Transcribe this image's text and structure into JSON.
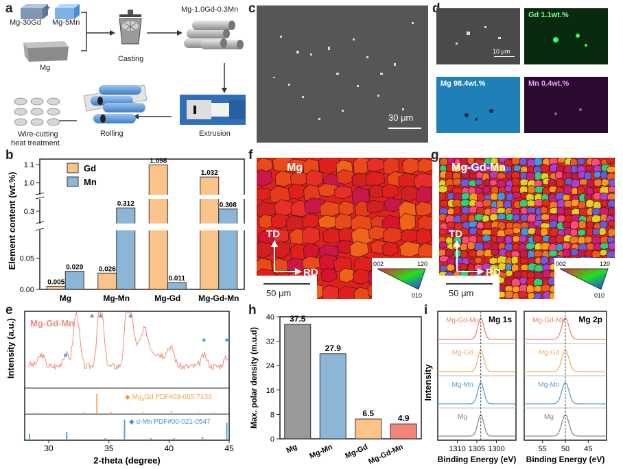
{
  "panels": {
    "a": {
      "letter": "a",
      "mg30gd": "Mg-30Gd",
      "plus": "+",
      "mg5mn": "Mg-5Mn",
      "mg": "Mg",
      "casting": "Casting",
      "alloy": "Mg-1.0Gd-0.3Mn",
      "extrusion": "Extrusion",
      "rolling": "Rolling",
      "wire_cutting": "Wire-cutting",
      "heat_treatment": "heat treatment"
    },
    "c": {
      "letter": "c",
      "scale": "30 μm"
    },
    "d": {
      "letter": "d",
      "scale": "10 μm",
      "gd": "Gd 1.1wt.%",
      "mg": "Mg 98.4wt.%",
      "mn": "Mn 0.4wt.%"
    },
    "f": {
      "letter": "f",
      "label": "Mg",
      "td": "TD",
      "rd": "RD",
      "scale": "50 μm",
      "ipf_002": "002",
      "ipf_120": "120",
      "ipf_010": "010"
    },
    "g": {
      "letter": "g",
      "label": "Mg-Gd-Mn",
      "td": "TD",
      "rd": "RD",
      "scale": "50 μm",
      "ipf_002": "002",
      "ipf_120": "120",
      "ipf_010": "010"
    }
  },
  "chart_data": [
    {
      "id": "b",
      "letter": "b",
      "type": "bar",
      "ylabel": "Element content (wt.%)",
      "categories": [
        "Mg",
        "Mg-Mn",
        "Mg-Gd",
        "Mg-Gd-Mn"
      ],
      "series": [
        {
          "name": "Gd",
          "color": "#f9c38a",
          "values": [
            0.005,
            0.026,
            1.098,
            1.032
          ],
          "labels": [
            "0.005",
            "0.026",
            "1.098",
            "1.032"
          ]
        },
        {
          "name": "Mn",
          "color": "#8db6d6",
          "values": [
            0.029,
            0.312,
            0.011,
            0.308
          ],
          "labels": [
            "0.029",
            "0.312",
            "0.011",
            "0.308"
          ]
        }
      ],
      "yticks": [
        "0.00",
        "0.05",
        "0.3",
        "1.0",
        "1.1"
      ],
      "y_segments": [
        [
          0,
          0.09
        ],
        [
          0.26,
          0.34
        ],
        [
          0.95,
          1.13
        ]
      ]
    },
    {
      "id": "e",
      "letter": "e",
      "type": "line",
      "xlabel": "2-theta (degree)",
      "ylabel": "Intensity (a.u.)",
      "xlim": [
        28,
        45
      ],
      "xticks": [
        "30",
        "35",
        "40",
        "45"
      ],
      "sample": "Mg-Gd-Mn",
      "ref1": "Mg3Gd PDF#03-065-7133",
      "ref1_main": "Mg",
      "ref1_sub": "3",
      "ref1_rest": "Gd PDF#03-065-7133",
      "ref2": "α-Mn PDF#00-021-0547",
      "ref1_sticks": [
        [
          28.8,
          0.08
        ],
        [
          30.6,
          0.05
        ],
        [
          32.9,
          0.1
        ],
        [
          34.0,
          1.0
        ],
        [
          35.2,
          0.1
        ],
        [
          37.8,
          0.1
        ],
        [
          40.2,
          0.15
        ],
        [
          42.5,
          0.08
        ],
        [
          43.8,
          0.08
        ]
      ],
      "ref2_sticks": [
        [
          28.4,
          0.3
        ],
        [
          31.5,
          0.4
        ],
        [
          34.7,
          0.1
        ],
        [
          36.3,
          1.0
        ],
        [
          38.5,
          0.1
        ],
        [
          40.4,
          0.1
        ],
        [
          42.8,
          0.15
        ],
        [
          44.8,
          0.85
        ]
      ]
    },
    {
      "id": "h",
      "letter": "h",
      "type": "bar",
      "ylabel": "Max. polar density (m.u.d)",
      "categories": [
        "Mg",
        "Mg-Mn",
        "Mg-Gd",
        "Mg-Gd-Mn"
      ],
      "values": [
        37.5,
        27.9,
        6.5,
        4.9
      ],
      "value_labels": [
        "37.5",
        "27.9",
        "6.5",
        "4.9"
      ],
      "colors": [
        "#999999",
        "#8db6d6",
        "#f9c38a",
        "#f4837a"
      ],
      "ylim": [
        0,
        40
      ],
      "yticks": [
        "0",
        "8",
        "16",
        "24",
        "32",
        "40"
      ]
    },
    {
      "id": "i",
      "letter": "i",
      "type": "line",
      "ylabel": "Intensity",
      "xlabel": "Binding Energy (eV)",
      "panels": [
        {
          "title": "Mg 1s",
          "xlim": [
            1315,
            1295
          ],
          "xticks": [
            "1310",
            "1305",
            "1300"
          ],
          "peak": 1304
        },
        {
          "title": "Mg 2p",
          "xlim": [
            59,
            41
          ],
          "xticks": [
            "55",
            "50",
            "45"
          ],
          "peak": 50
        }
      ],
      "series": [
        {
          "name": "Mg-Gd-Mn",
          "color": "#f08070"
        },
        {
          "name": "Mg-Gd",
          "color": "#f6b060"
        },
        {
          "name": "Mg-Mn",
          "color": "#5aa0d0"
        },
        {
          "name": "Mg",
          "color": "#888888"
        }
      ]
    }
  ]
}
